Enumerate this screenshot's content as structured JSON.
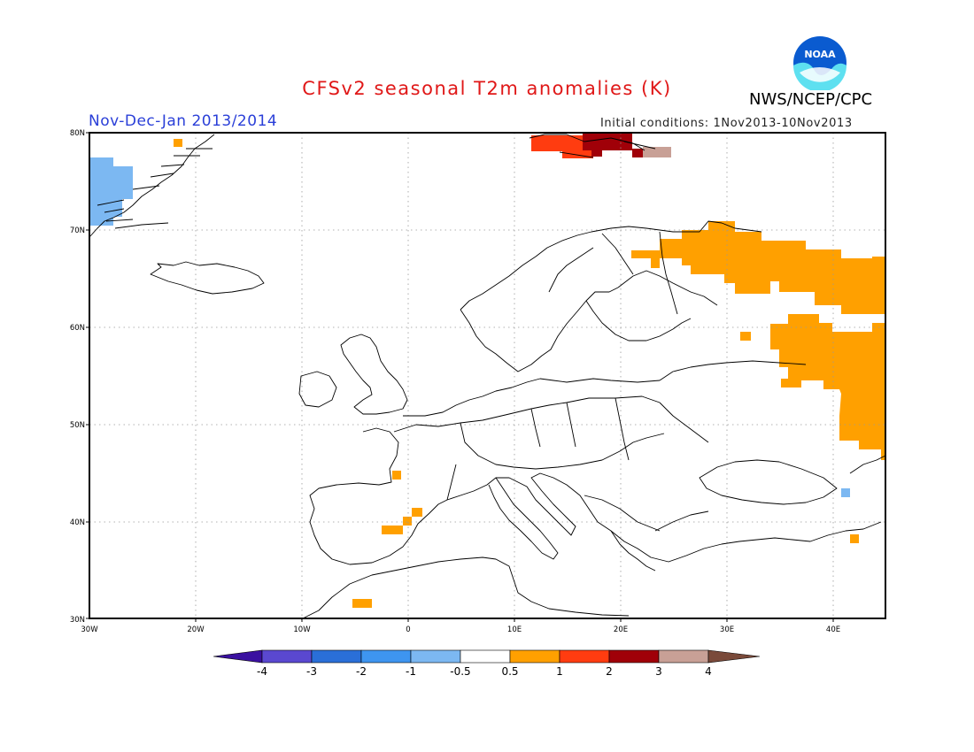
{
  "header": {
    "title": "CFSv2 seasonal T2m anomalies (K)",
    "agency": "NWS/NCEP/CPC",
    "period": "Nov-Dec-Jan 2013/2014",
    "initial_conditions": "Initial conditions: 1Nov2013-10Nov2013",
    "logo_text": "NOAA"
  },
  "map": {
    "projection": "lat-lon",
    "lon_range": [
      -30,
      45
    ],
    "lat_range": [
      30,
      80
    ],
    "grid": true,
    "y_ticks": [
      "80N",
      "70N",
      "60N",
      "50N",
      "40N",
      "30N"
    ],
    "x_ticks": [
      "30W",
      "20W",
      "10W",
      "0",
      "10E",
      "20E",
      "30E",
      "40E"
    ],
    "anomaly_regions": [
      {
        "category": "-1 to -0.5",
        "color": "#7cb8f2",
        "place": "East Greenland coast"
      },
      {
        "category": "0.5 to 1",
        "color": "#ffa000",
        "place": "Northwest Russia / Kola"
      },
      {
        "category": "0.5 to 1",
        "color": "#ffa000",
        "place": "Western Russia"
      },
      {
        "category": "0.5 to 1",
        "color": "#ffa000",
        "place": "Iberian Peninsula (small patches)"
      },
      {
        "category": "0.5 to 1",
        "color": "#ffa000",
        "place": "Morocco coast"
      },
      {
        "category": "1 to 2",
        "color": "#ff3c10",
        "place": "Svalbard"
      },
      {
        "category": "2 to 3",
        "color": "#a00008",
        "place": "Svalbard"
      },
      {
        "category": "3 to 4",
        "color": "#c8a096",
        "place": "Svalbard east"
      },
      {
        "category": "-1 to -0.5",
        "color": "#7cb8f2",
        "place": "Caucasus"
      },
      {
        "category": "0.5 to 1",
        "color": "#ffa000",
        "place": "Eastern Turkey"
      }
    ]
  },
  "colorbar": {
    "labels": [
      "-4",
      "-3",
      "-2",
      "-1",
      "-0.5",
      "0.5",
      "1",
      "2",
      "3",
      "4"
    ],
    "colors": [
      "#3a10a0",
      "#5a48d0",
      "#2a6fd8",
      "#3e95f0",
      "#7cb8f2",
      "#ffffff",
      "#ffa000",
      "#ff3c10",
      "#a00008",
      "#c8a096",
      "#7a4a3a"
    ]
  }
}
